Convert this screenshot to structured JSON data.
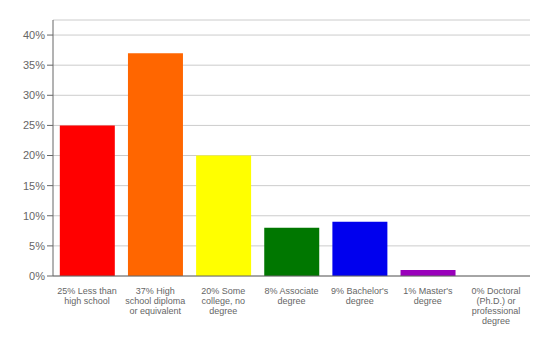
{
  "chart_data": {
    "type": "bar",
    "categories": [
      "25% Less than\nhigh school",
      "37% High\nschool diploma\nor equivalent",
      "20% Some\ncollege, no\ndegree",
      "8% Associate\ndegree",
      "9% Bachelor's\ndegree",
      "1% Master's\ndegree",
      "0% Doctoral\n(Ph.D.) or\nprofessional\ndegree"
    ],
    "values": [
      25,
      37,
      20,
      8,
      9,
      1,
      0
    ],
    "colors": [
      "#ff0000",
      "#ff6600",
      "#ffff00",
      "#007700",
      "#0000ee",
      "#9900bb",
      "#ff00ff"
    ],
    "ylim": [
      0,
      42.5
    ],
    "yticks": [
      {
        "value": 0,
        "label": "0%"
      },
      {
        "value": 5,
        "label": "5%"
      },
      {
        "value": 10,
        "label": "10%"
      },
      {
        "value": 15,
        "label": "15%"
      },
      {
        "value": 20,
        "label": "20%"
      },
      {
        "value": 25,
        "label": "25%"
      },
      {
        "value": 30,
        "label": "30%"
      },
      {
        "value": 35,
        "label": "35%"
      },
      {
        "value": 40,
        "label": "40%"
      }
    ],
    "grid": true
  }
}
